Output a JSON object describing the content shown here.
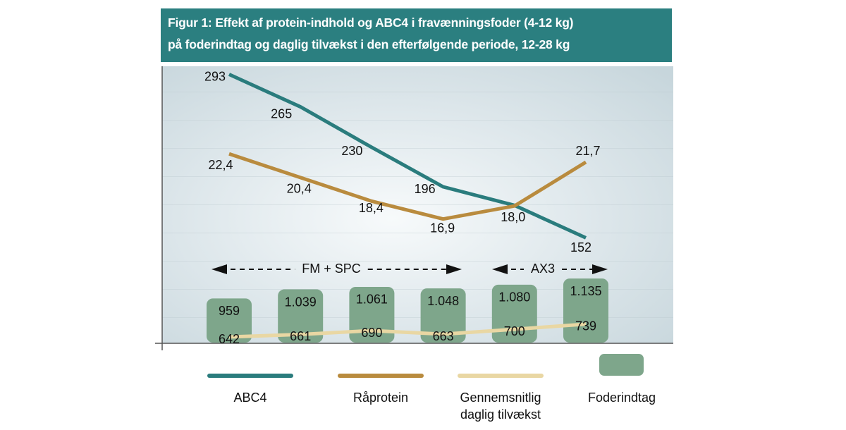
{
  "chart_data": {
    "type": "line",
    "title": [
      "Figur 1: Effekt af protein-indhold og ABC4 i fravænningsfoder (4-12 kg)",
      "på foderindtag og daglig tilvækst i den efterfølgende periode, 12-28 kg"
    ],
    "categories": [
      null,
      null,
      null,
      null,
      null,
      null
    ],
    "series": [
      {
        "name": "Foderindtag",
        "type": "bar",
        "color": "#7ea68b",
        "values": [
          959,
          1039,
          1061,
          1048,
          1080,
          1135
        ],
        "value_labels": [
          "959",
          "1.039",
          "1.061",
          "1.048",
          "1.080",
          "1.135"
        ],
        "ylim": [
          563,
          3009
        ]
      },
      {
        "name": "ABC4",
        "type": "line",
        "color": "#2a7c7d",
        "values": [
          293,
          265,
          230,
          196,
          180,
          152
        ],
        "value_labels": [
          "293",
          "265",
          "230",
          "196",
          null,
          "152"
        ],
        "ylim": [
          61,
          300
        ]
      },
      {
        "name": "Råprotein",
        "type": "line",
        "color": "#b98b3e",
        "values": [
          22.4,
          20.4,
          18.4,
          16.9,
          18.0,
          21.7
        ],
        "value_labels": [
          "22,4",
          "20,4",
          "18,4",
          "16,9",
          "18,0",
          "21,7"
        ],
        "ylim": [
          6.4,
          29.8
        ]
      },
      {
        "name": "Gennemsnitlig daglig tilvækst",
        "type": "line",
        "color": "#e9d7a3",
        "values": [
          642,
          661,
          690,
          663,
          700,
          739
        ],
        "ylim": [
          594,
          2690
        ]
      }
    ],
    "annotations": [
      "FM + SPC",
      "AX3"
    ]
  }
}
